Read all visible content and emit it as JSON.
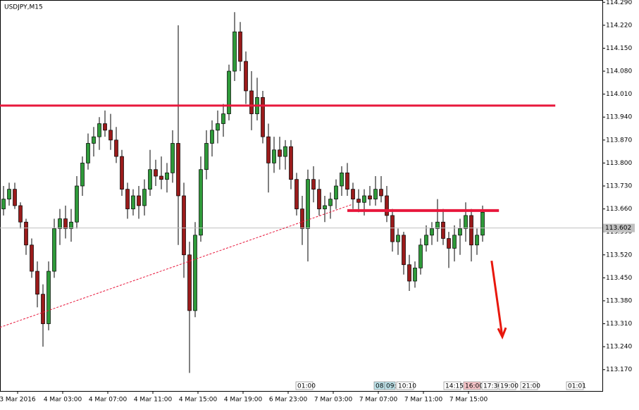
{
  "chart_data": {
    "type": "candlestick",
    "title": "USDJPY,M15",
    "open": [
      113.66,
      113.69,
      113.72,
      113.67,
      113.62,
      113.55,
      113.47,
      113.4,
      113.31,
      113.47,
      113.6,
      113.63,
      113.6,
      113.62,
      113.73,
      113.8,
      113.86,
      113.88,
      113.92,
      113.9,
      113.87,
      113.82,
      113.72,
      113.66,
      113.7,
      113.67,
      113.72,
      113.78,
      113.76,
      113.75,
      113.77,
      113.86,
      113.7,
      113.52,
      113.35,
      113.58,
      113.78,
      113.86,
      113.9,
      113.92,
      113.95,
      114.08,
      114.2,
      114.11,
      114.02,
      113.95,
      114.0,
      113.88,
      113.8,
      113.84,
      113.82,
      113.85,
      113.75,
      113.66,
      113.6,
      113.75,
      113.72,
      113.66,
      113.67,
      113.69,
      113.73,
      113.77,
      113.72,
      113.69,
      113.68,
      113.7,
      113.69,
      113.72,
      113.7,
      113.64,
      113.56,
      113.58,
      113.49,
      113.44,
      113.48,
      113.55,
      113.58,
      113.6,
      113.62,
      113.57,
      113.54,
      113.58,
      113.6,
      113.64,
      113.55,
      113.58
    ],
    "high": [
      113.73,
      113.74,
      113.74,
      113.68,
      113.63,
      113.57,
      113.5,
      113.43,
      113.5,
      113.63,
      113.66,
      113.67,
      113.66,
      113.76,
      113.82,
      113.89,
      113.91,
      113.94,
      113.96,
      113.95,
      113.91,
      113.84,
      113.74,
      113.72,
      113.73,
      113.75,
      113.84,
      113.81,
      113.82,
      113.8,
      113.9,
      114.22,
      113.74,
      113.56,
      113.62,
      113.82,
      113.9,
      113.93,
      113.96,
      113.98,
      114.1,
      114.26,
      114.23,
      114.14,
      114.08,
      114.06,
      114.02,
      113.92,
      113.88,
      113.88,
      113.87,
      113.87,
      113.77,
      113.7,
      113.78,
      113.79,
      113.75,
      113.7,
      113.71,
      113.75,
      113.79,
      113.8,
      113.74,
      113.72,
      113.72,
      113.73,
      113.76,
      113.76,
      113.73,
      113.66,
      113.6,
      113.59,
      113.52,
      113.5,
      113.57,
      113.61,
      113.62,
      113.69,
      113.66,
      113.59,
      113.61,
      113.63,
      113.68,
      113.66,
      113.6,
      113.67
    ],
    "low": [
      113.64,
      113.67,
      113.66,
      113.6,
      113.52,
      113.45,
      113.36,
      113.24,
      113.29,
      113.45,
      113.55,
      113.57,
      113.56,
      113.6,
      113.7,
      113.78,
      113.82,
      113.84,
      113.88,
      113.84,
      113.8,
      113.7,
      113.63,
      113.64,
      113.63,
      113.64,
      113.7,
      113.73,
      113.72,
      113.71,
      113.74,
      113.55,
      113.45,
      113.16,
      113.33,
      113.56,
      113.75,
      113.82,
      113.86,
      113.88,
      113.93,
      114.05,
      114.08,
      113.98,
      113.9,
      113.93,
      113.86,
      113.71,
      113.77,
      113.78,
      113.78,
      113.72,
      113.64,
      113.55,
      113.5,
      113.68,
      113.64,
      113.62,
      113.63,
      113.66,
      113.7,
      113.7,
      113.66,
      113.65,
      113.64,
      113.67,
      113.67,
      113.68,
      113.62,
      113.53,
      113.52,
      113.46,
      113.41,
      113.42,
      113.46,
      113.53,
      113.55,
      113.56,
      113.55,
      113.48,
      113.5,
      113.52,
      113.56,
      113.5,
      113.52,
      113.56
    ],
    "close": [
      113.69,
      113.72,
      113.67,
      113.62,
      113.55,
      113.47,
      113.4,
      113.31,
      113.47,
      113.6,
      113.63,
      113.6,
      113.62,
      113.73,
      113.8,
      113.86,
      113.88,
      113.92,
      113.9,
      113.87,
      113.82,
      113.72,
      113.66,
      113.7,
      113.67,
      113.72,
      113.78,
      113.76,
      113.75,
      113.77,
      113.86,
      113.7,
      113.52,
      113.35,
      113.58,
      113.78,
      113.86,
      113.9,
      113.92,
      113.95,
      114.08,
      114.2,
      114.11,
      114.02,
      113.95,
      114.0,
      113.88,
      113.8,
      113.84,
      113.82,
      113.85,
      113.75,
      113.66,
      113.6,
      113.75,
      113.72,
      113.66,
      113.67,
      113.69,
      113.73,
      113.77,
      113.72,
      113.69,
      113.68,
      113.7,
      113.69,
      113.72,
      113.7,
      113.64,
      113.56,
      113.58,
      113.49,
      113.44,
      113.48,
      113.55,
      113.58,
      113.6,
      113.62,
      113.57,
      113.54,
      113.58,
      113.6,
      113.64,
      113.55,
      113.58,
      113.65
    ],
    "up_color": "#2f9a3a",
    "down_color": "#9a1b1b",
    "xlim": [
      -0.625,
      106.25
    ],
    "xticks": [
      {
        "value": 2.5,
        "label": "3 Mar 2016"
      },
      {
        "value": 10.5,
        "label": "4 Mar 03:00"
      },
      {
        "value": 18.5,
        "label": "4 Mar 07:00"
      },
      {
        "value": 26.5,
        "label": "4 Mar 11:00"
      },
      {
        "value": 34.5,
        "label": "4 Mar 15:00"
      },
      {
        "value": 42.5,
        "label": "4 Mar 19:00"
      },
      {
        "value": 50.5,
        "label": "6 Mar 23:00"
      },
      {
        "value": 58.5,
        "label": "7 Mar 03:00"
      },
      {
        "value": 66.5,
        "label": "7 Mar 07:00"
      },
      {
        "value": 74.5,
        "label": "7 Mar 11:00"
      },
      {
        "value": 82.5,
        "label": "7 Mar 15:00"
      }
    ],
    "ylim": [
      113.105,
      114.297
    ],
    "yticks": [
      {
        "value": 114.29,
        "label": "114.290"
      },
      {
        "value": 114.22,
        "label": "114.220"
      },
      {
        "value": 114.15,
        "label": "114.150"
      },
      {
        "value": 114.08,
        "label": "114.080"
      },
      {
        "value": 114.01,
        "label": "114.010"
      },
      {
        "value": 113.94,
        "label": "113.940"
      },
      {
        "value": 113.87,
        "label": "113.870"
      },
      {
        "value": 113.8,
        "label": "113.800"
      },
      {
        "value": 113.73,
        "label": "113.730"
      },
      {
        "value": 113.66,
        "label": "113.660"
      },
      {
        "value": 113.59,
        "label": "113.590"
      },
      {
        "value": 113.52,
        "label": "113.520"
      },
      {
        "value": 113.45,
        "label": "113.450"
      },
      {
        "value": 113.38,
        "label": "113.380"
      },
      {
        "value": 113.31,
        "label": "113.310"
      },
      {
        "value": 113.24,
        "label": "113.240"
      },
      {
        "value": 113.17,
        "label": "113.170"
      }
    ],
    "current_price": {
      "value": 113.602,
      "label": "113.602"
    },
    "lines": [
      {
        "x": [
          -0.625,
          97.9
        ],
        "y": [
          113.975,
          113.975
        ],
        "color": "#e8173c",
        "width": 3
      },
      {
        "x": [
          61,
          87.9
        ],
        "y": [
          113.655,
          113.655
        ],
        "color": "#e8173c",
        "width": 4
      },
      {
        "x": [
          -0.625,
          61.9
        ],
        "y": [
          113.299,
          113.674
        ],
        "color": "#e8173c",
        "width": 1,
        "dashed": true
      }
    ],
    "arrow": {
      "x": [
        86.6,
        88.5
      ],
      "y": [
        113.502,
        113.27
      ],
      "color": "#e8170c"
    },
    "time_markers": [
      "01:00",
      "08:",
      "09:",
      "10:10",
      "14:15",
      "16:00",
      "17:30",
      "19:00",
      "21:00",
      "01:01"
    ]
  }
}
